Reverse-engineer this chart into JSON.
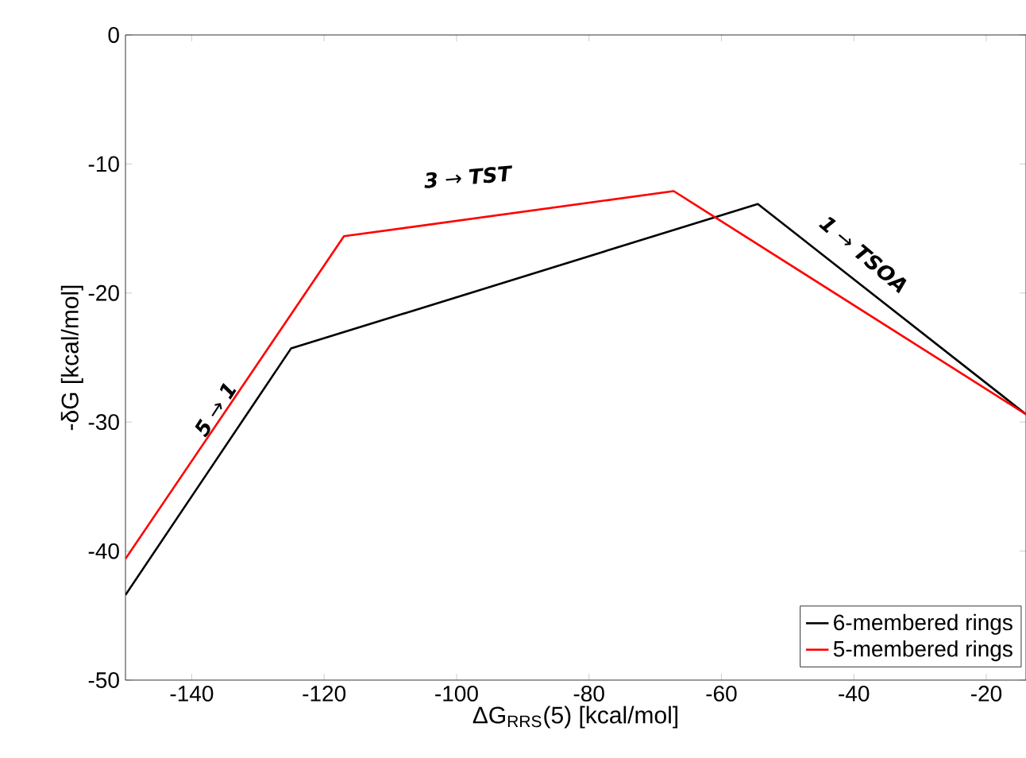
{
  "chart_data": {
    "type": "line",
    "xlabel": "ΔG$_{RRS}$(5) [kcal/mol]",
    "ylabel": "-δG [kcal/mol]",
    "series": [
      {
        "name": "6-membered rings",
        "color": "#000000",
        "x": [
          -150,
          -125,
          -54.5,
          -14
        ],
        "values": [
          -43.4,
          -24.3,
          -13.1,
          -29.4
        ]
      },
      {
        "name": "5-membered rings",
        "color": "#ff0000",
        "x": [
          -150,
          -117,
          -67.2,
          -14
        ],
        "values": [
          -40.6,
          -15.6,
          -12.1,
          -29.4
        ]
      }
    ],
    "xlim": [
      -150,
      -14
    ],
    "ylim": [
      -50,
      0
    ],
    "xticks": [
      -140,
      -120,
      -100,
      -80,
      -60,
      -40,
      -20
    ],
    "yticks": [
      -50,
      -40,
      -30,
      -20,
      -10,
      0
    ],
    "annotations": [
      "**5** → **1**",
      "**3** → **TST**",
      "**1** → **TSOA**"
    ],
    "legend": "bottom right",
    "grid": false,
    "marker": "none",
    "line_style": "solid"
  }
}
